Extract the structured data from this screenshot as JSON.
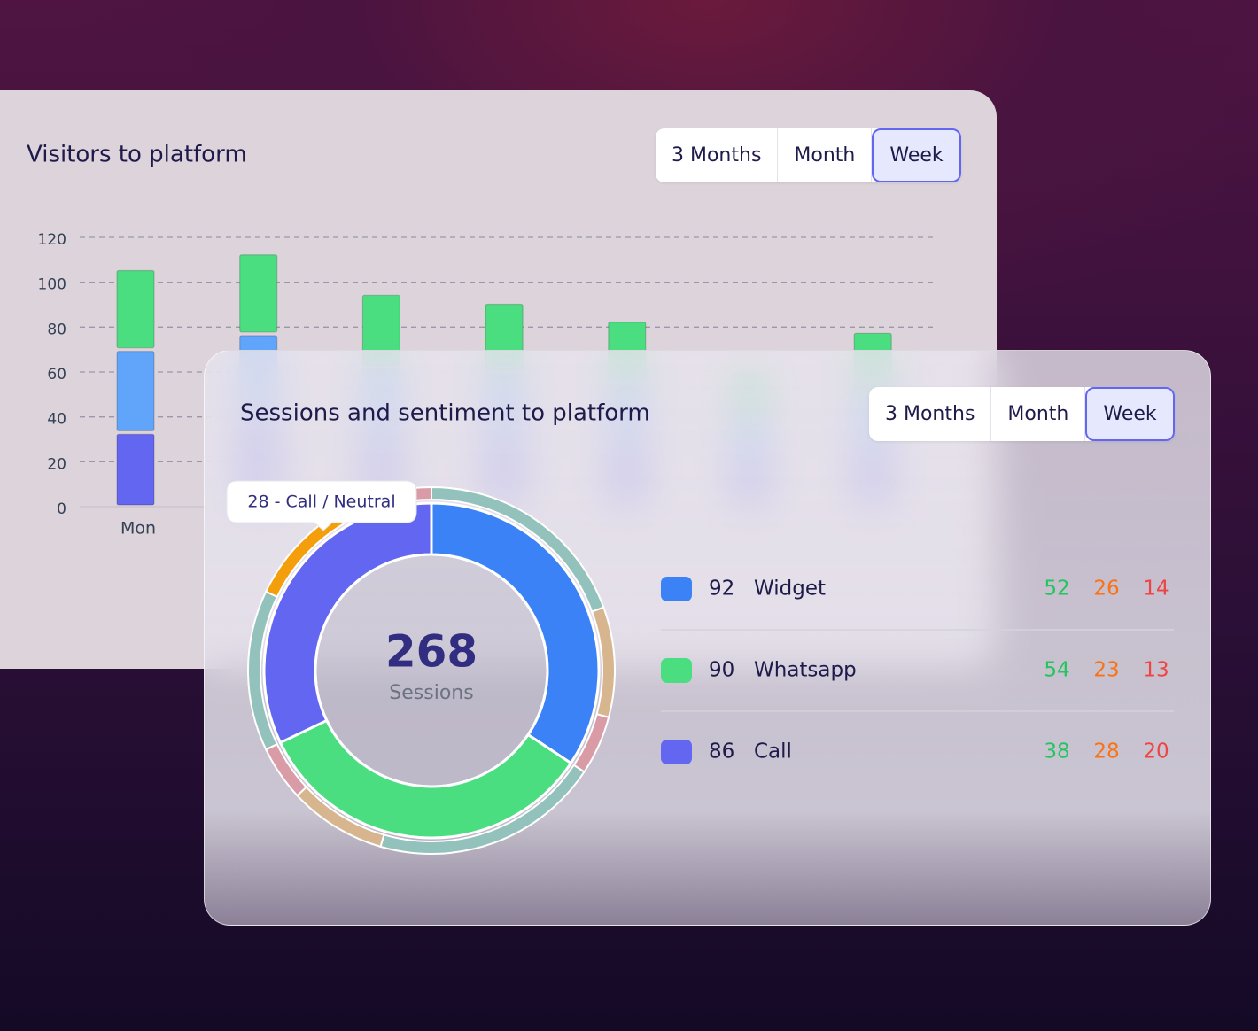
{
  "cards": [
    {
      "buttons": [
        "3 Months",
        "Month",
        "Week"
      ],
      "selected": 2
    },
    {
      "buttons": [
        "3 Months",
        "Month",
        "Week"
      ],
      "selected": 2
    }
  ],
  "chart_data": [
    {
      "type": "bar",
      "stacked": true,
      "title": "Visitors to platform",
      "categories": [
        "Mon",
        null,
        null,
        null,
        null,
        null,
        null
      ],
      "series": [
        {
          "color": "#6366f1",
          "values": [
            33,
            38,
            30,
            30,
            27,
            20,
            25
          ]
        },
        {
          "color": "#60a5fa",
          "values": [
            37,
            39,
            32,
            30,
            28,
            20,
            26
          ]
        },
        {
          "color": "#4ade80",
          "values": [
            36,
            36,
            33,
            31,
            28,
            20,
            27
          ]
        }
      ],
      "ylim": [
        0,
        120
      ],
      "yticks": [
        0,
        20,
        40,
        60,
        80,
        100,
        120
      ],
      "grid": true
    },
    {
      "type": "donut",
      "title": "Sessions and sentiment to platform",
      "categories": [
        "Widget",
        "Whatsapp",
        "Call"
      ],
      "values": [
        92,
        90,
        86
      ],
      "colors": [
        "#3b82f6",
        "#4ade80",
        "#6366f1"
      ],
      "total": 268,
      "total_label": "Sessions",
      "sentiment": {
        "colors": [
          "#92c2bb",
          "#d7b68f",
          "#d99ca7"
        ],
        "text_colors": [
          "#22c55e",
          "#f97316",
          "#ef4444"
        ],
        "values": [
          [
            52,
            26,
            14
          ],
          [
            54,
            23,
            13
          ],
          [
            38,
            28,
            20
          ]
        ]
      },
      "highlight": {
        "category": 2,
        "sentiment": 1,
        "color": "#f59e0b",
        "label": "28 - Call / Neutral"
      }
    }
  ]
}
